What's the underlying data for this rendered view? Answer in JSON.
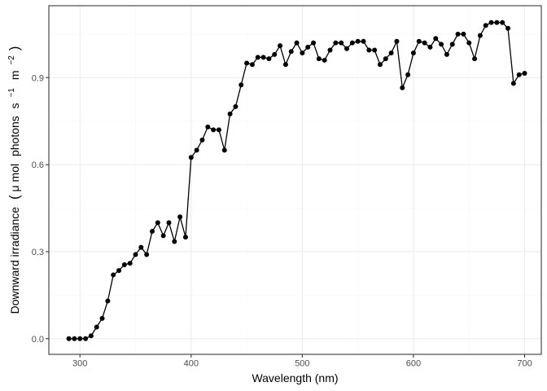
{
  "chart_data": {
    "type": "line",
    "xlabel": "Wavelength (nm)",
    "ylabel": {
      "prefix": "Downward irradiance",
      "unit_open": "(",
      "mu": "μ",
      "mol": "mol",
      "photons": "photons",
      "s": "s",
      "s_exp": "−1",
      "m": "m",
      "m_exp": "−2",
      "unit_close": ")"
    },
    "xlim": [
      272,
      715
    ],
    "ylim": [
      -0.054,
      1.148
    ],
    "x_ticks": [
      300,
      400,
      500,
      600,
      700
    ],
    "x_tick_labels": [
      "300",
      "400",
      "500",
      "600",
      "700"
    ],
    "y_ticks": [
      0.0,
      0.3,
      0.6,
      0.9
    ],
    "y_tick_labels": [
      "0.0",
      "0.3",
      "0.6",
      "0.9"
    ],
    "grid": true,
    "legend": "none",
    "series": [
      {
        "x": [
          290,
          295,
          300,
          305,
          310,
          315,
          320,
          325,
          330,
          335,
          340,
          345,
          350,
          355,
          360,
          365,
          370,
          375,
          380,
          385,
          390,
          395,
          400,
          405,
          410,
          415,
          420,
          425,
          430,
          435,
          440,
          445,
          450,
          455,
          460,
          465,
          470,
          475,
          480,
          485,
          490,
          495,
          500,
          505,
          510,
          515,
          520,
          525,
          530,
          535,
          540,
          545,
          550,
          555,
          560,
          565,
          570,
          575,
          580,
          585,
          590,
          595,
          600,
          605,
          610,
          615,
          620,
          625,
          630,
          635,
          640,
          645,
          650,
          655,
          660,
          665,
          670,
          675,
          680,
          685,
          690,
          695,
          700
        ],
        "y": [
          0.0,
          0.0,
          0.0,
          0.0,
          0.01,
          0.04,
          0.07,
          0.13,
          0.22,
          0.235,
          0.255,
          0.26,
          0.29,
          0.315,
          0.29,
          0.37,
          0.4,
          0.355,
          0.4,
          0.335,
          0.42,
          0.35,
          0.625,
          0.65,
          0.685,
          0.73,
          0.72,
          0.72,
          0.65,
          0.775,
          0.8,
          0.875,
          0.95,
          0.945,
          0.97,
          0.97,
          0.965,
          0.98,
          1.01,
          0.945,
          0.99,
          1.02,
          0.985,
          1.005,
          1.02,
          0.965,
          0.96,
          0.995,
          1.02,
          1.02,
          1.0,
          1.02,
          1.025,
          1.025,
          0.995,
          0.995,
          0.945,
          0.965,
          0.985,
          1.025,
          0.865,
          0.91,
          0.985,
          1.025,
          1.02,
          1.005,
          1.035,
          1.015,
          0.98,
          1.015,
          1.05,
          1.05,
          1.02,
          0.965,
          1.045,
          1.08,
          1.09,
          1.09,
          1.09,
          1.07,
          0.88,
          0.91,
          0.915
        ]
      }
    ]
  }
}
